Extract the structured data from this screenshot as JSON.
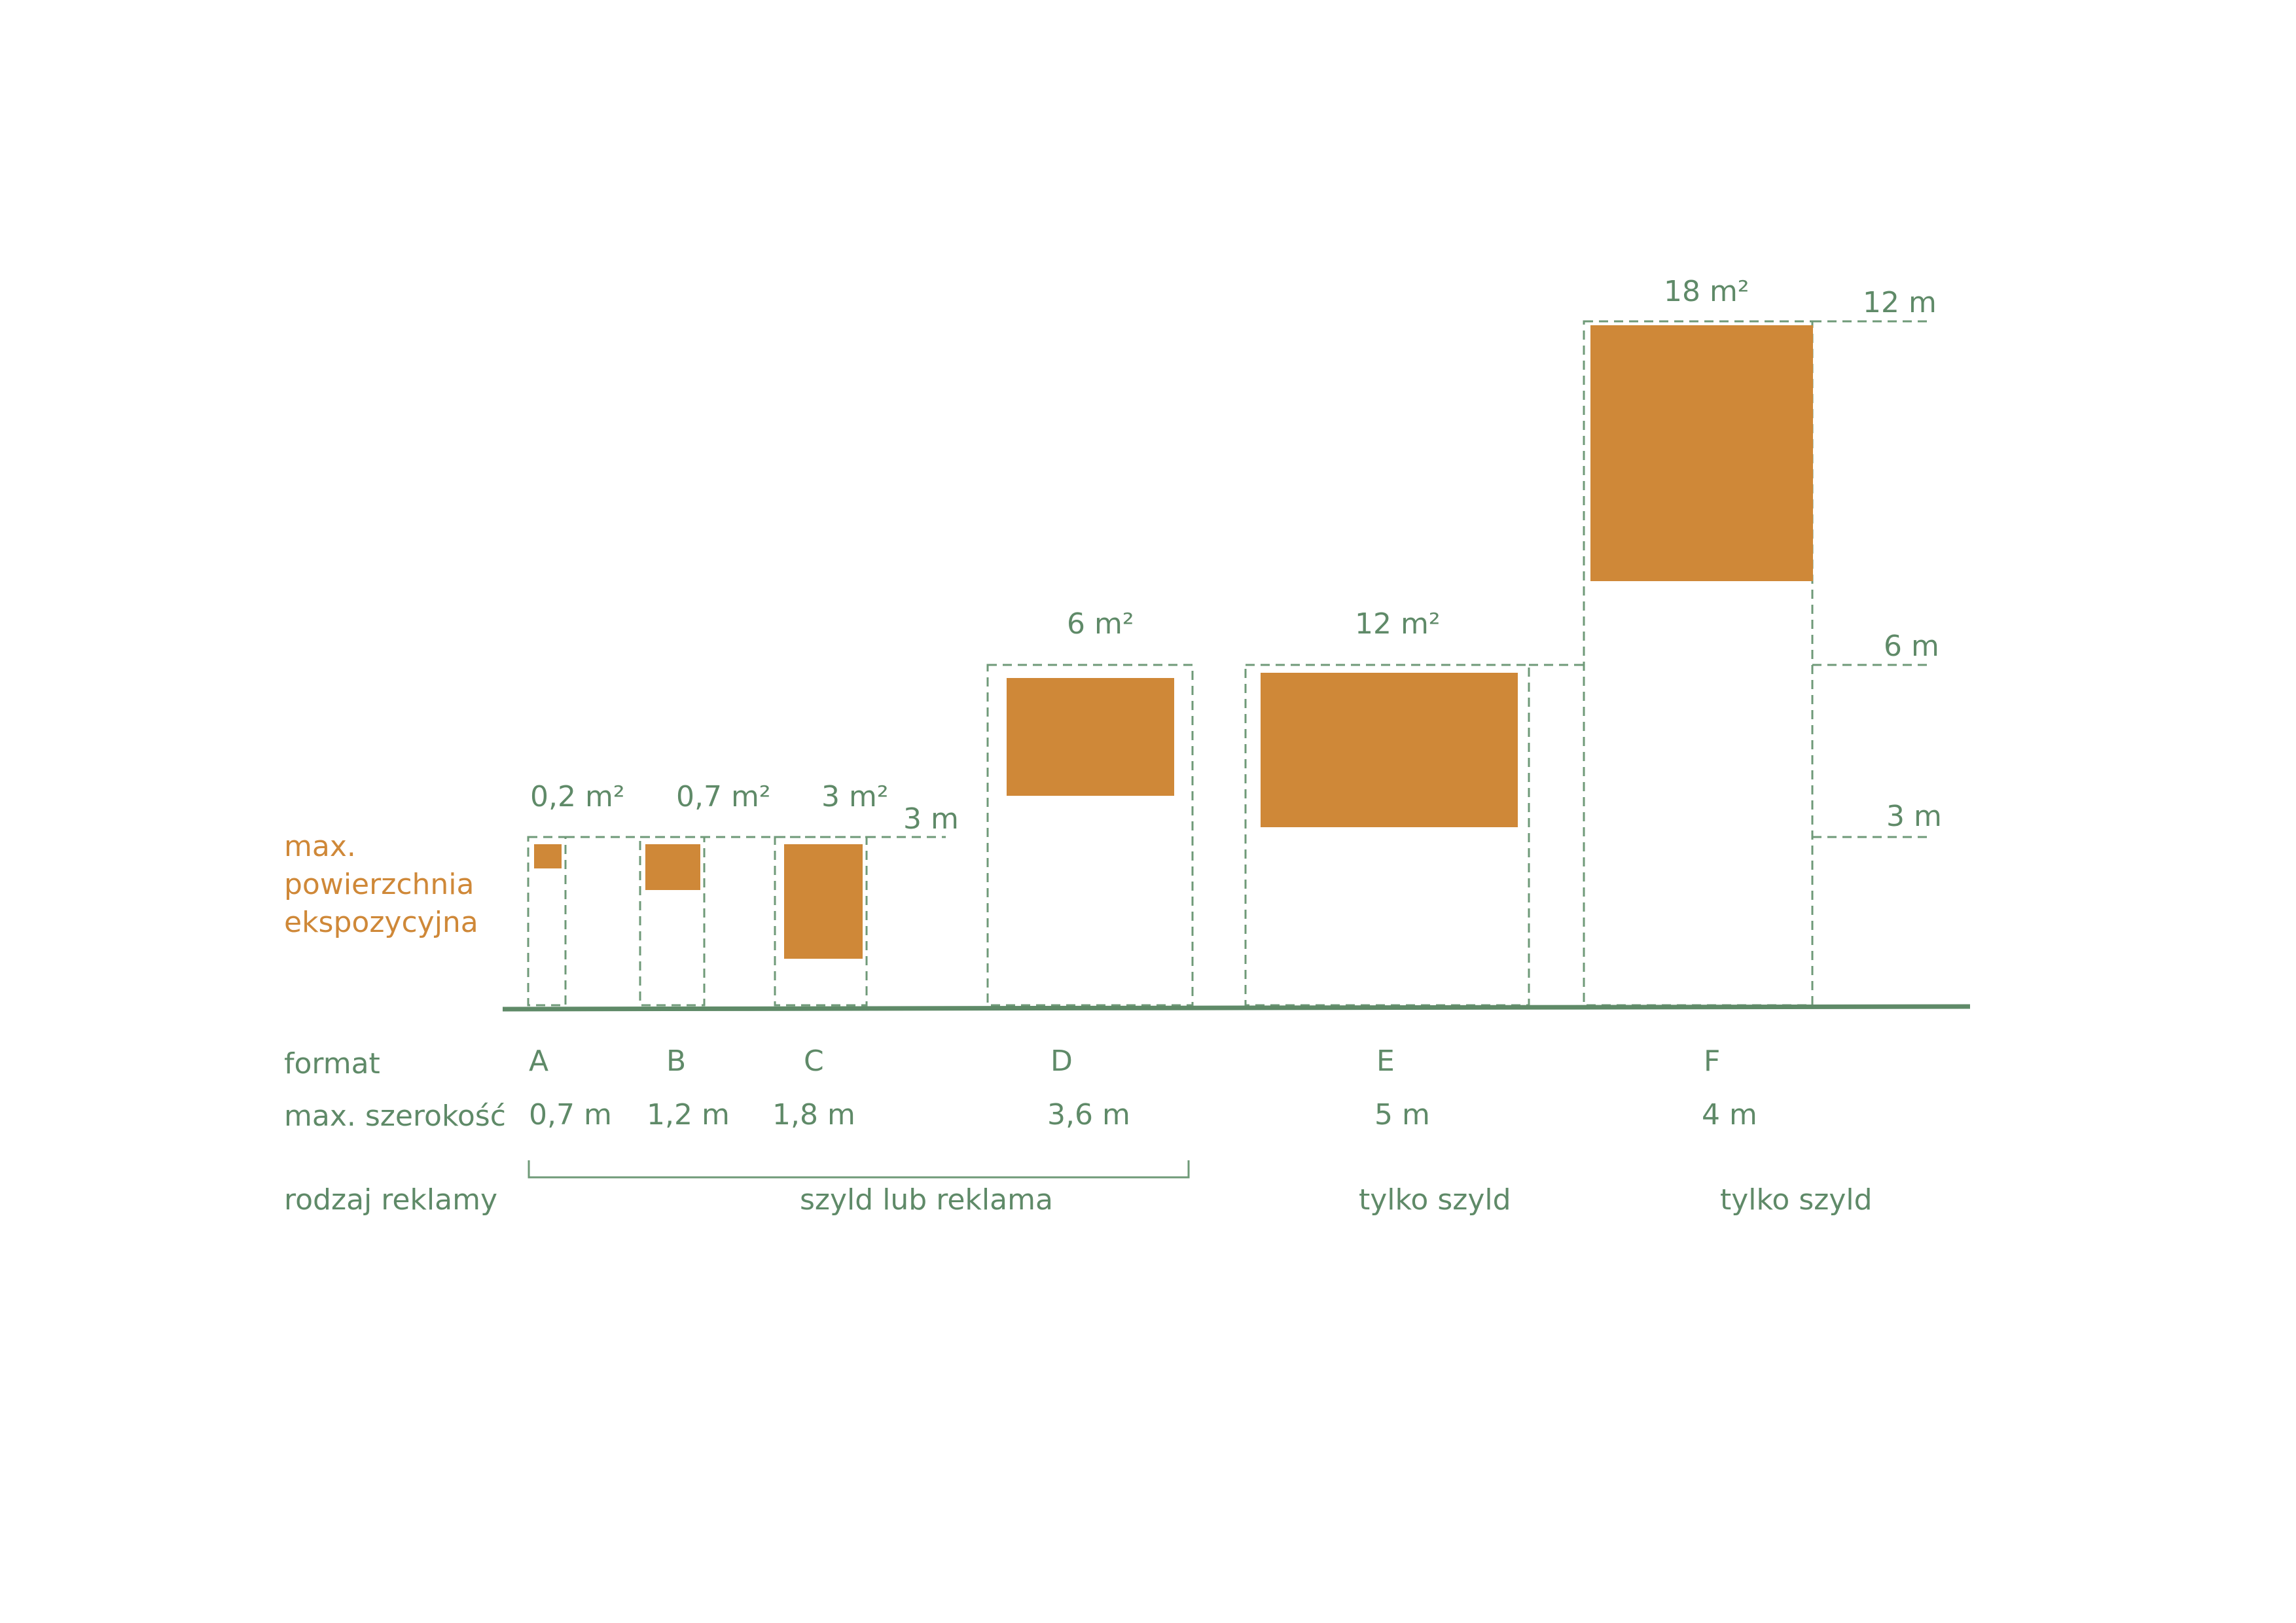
{
  "legend": {
    "line1": "max.",
    "line2": "powierzchnia",
    "line3": "ekspozycyjna"
  },
  "row_labels": {
    "format": "format",
    "width": "max. szerokość",
    "type": "rodzaj reklamy"
  },
  "heights": {
    "h3_left": "3 m",
    "h3_right": "3 m",
    "h6": "6 m",
    "h12": "12 m"
  },
  "formats": [
    {
      "letter": "A",
      "width": "0,7 m",
      "area": "0,2 m²"
    },
    {
      "letter": "B",
      "width": "1,2 m",
      "area": "0,7 m²"
    },
    {
      "letter": "C",
      "width": "1,8 m",
      "area": "3 m²"
    },
    {
      "letter": "D",
      "width": "3,6  m",
      "area": "6 m²"
    },
    {
      "letter": "E",
      "width": "5 m",
      "area": "12 m²"
    },
    {
      "letter": "F",
      "width": "4 m",
      "area": "18 m²"
    }
  ],
  "types": {
    "abcd": "szyld lub reklama",
    "e": "tylko szyld",
    "f": "tylko szyld"
  },
  "colors": {
    "panel": "#cf8838",
    "lines": "#5f8a68",
    "background": "#ffffff"
  }
}
